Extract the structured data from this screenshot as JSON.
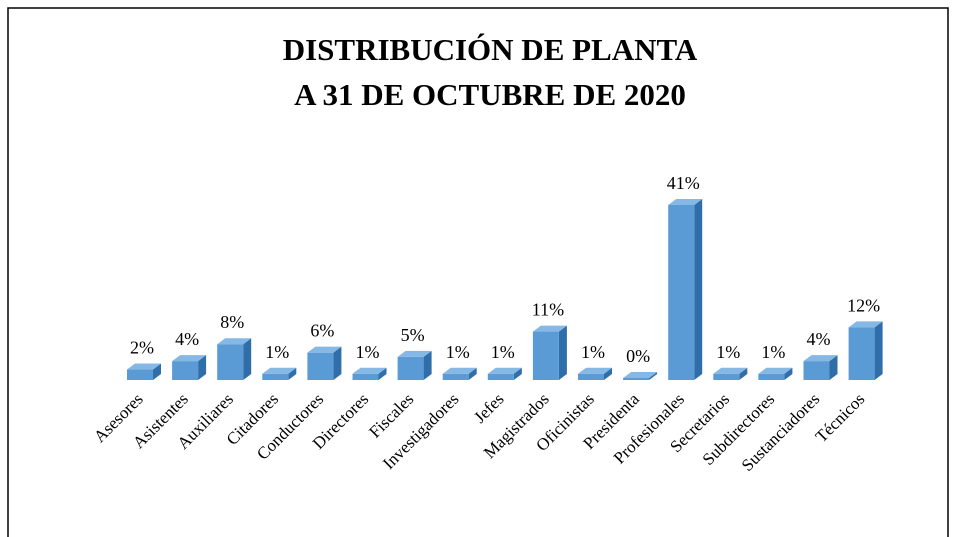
{
  "chart_data": {
    "type": "bar3d",
    "title": [
      "DISTRIBUCIÓN DE PLANTA",
      "A 31 DE OCTUBRE DE 2020"
    ],
    "categories": [
      "Asesores",
      "Asistentes",
      "Auxiliares",
      "Citadores",
      "Conductores",
      "Directores",
      "Fiscales",
      "Investigadores",
      "Jefes",
      "Magistrados",
      "Oficinistas",
      "Presidenta",
      "Profesionales",
      "Secretarios",
      "Subdirectores",
      "Sustanciadores",
      "Técnicos"
    ],
    "values": [
      2,
      4,
      8,
      1,
      6,
      1,
      5,
      1,
      1,
      11,
      1,
      0,
      41,
      1,
      1,
      4,
      12
    ],
    "value_labels": [
      "2%",
      "4%",
      "8%",
      "1%",
      "6%",
      "1%",
      "5%",
      "1%",
      "1%",
      "11%",
      "1%",
      "0%",
      "41%",
      "1%",
      "1%",
      "4%",
      "12%"
    ],
    "color": "#5b9bd5"
  }
}
